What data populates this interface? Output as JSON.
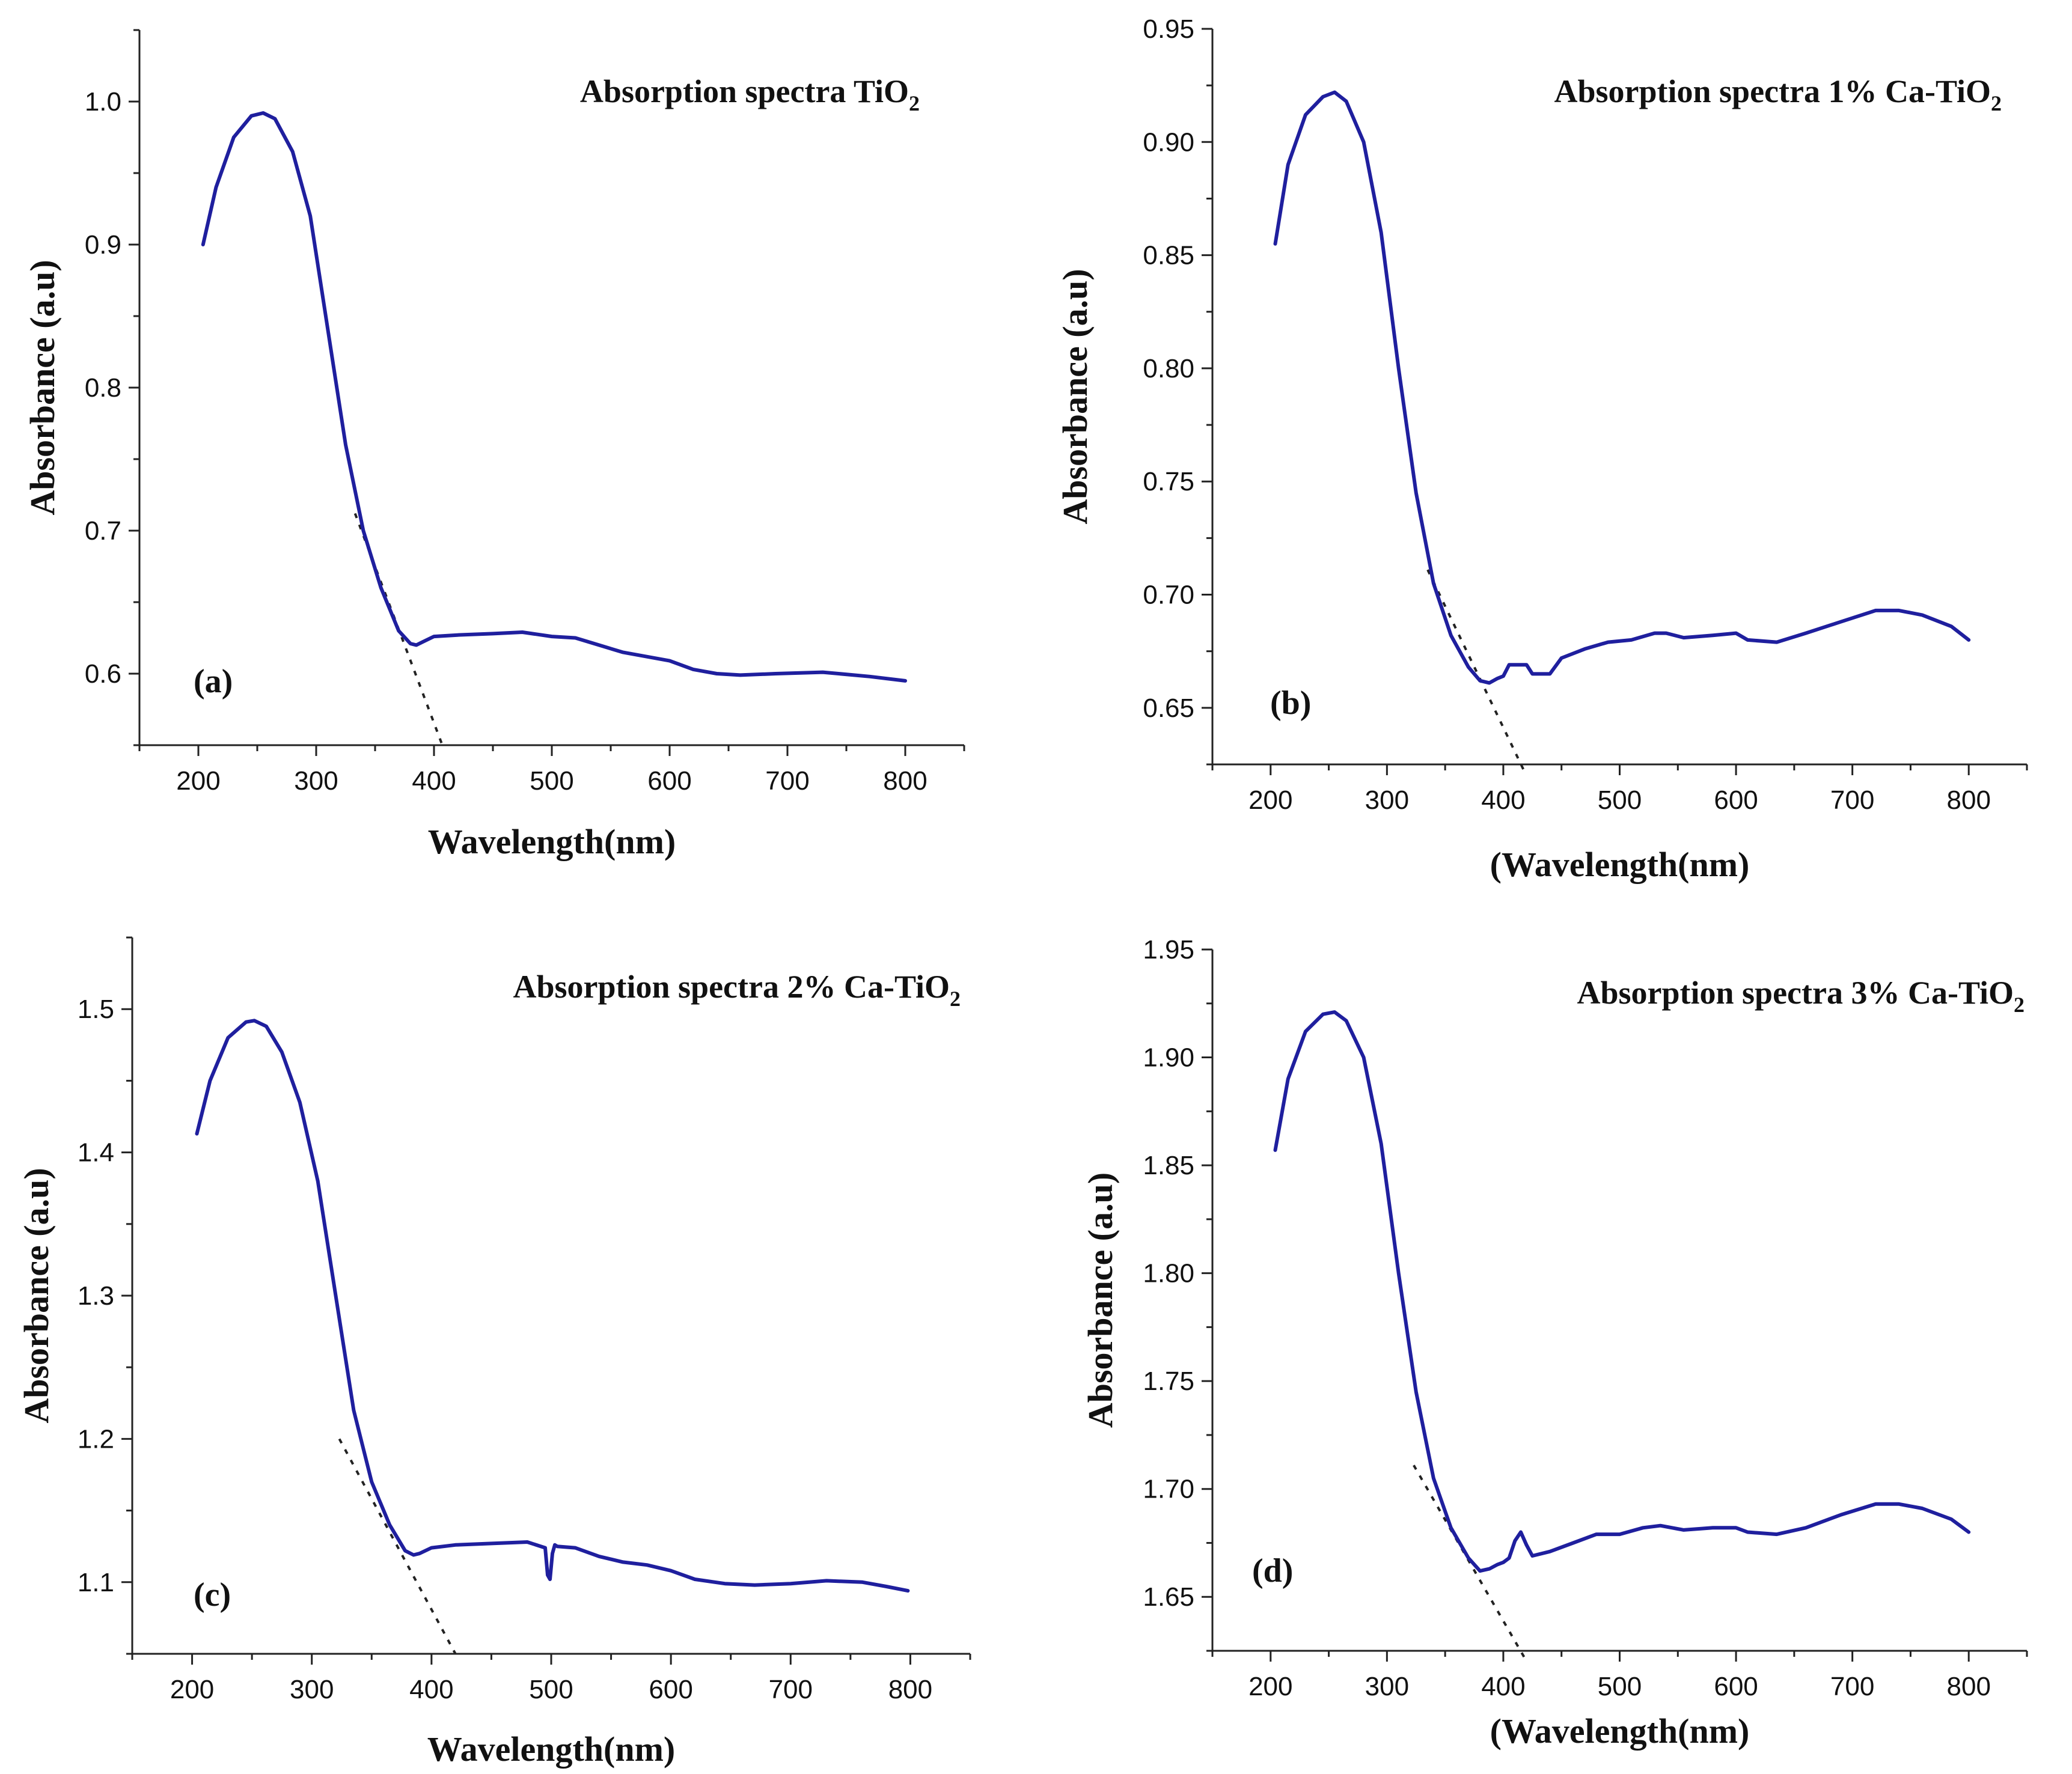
{
  "chart_data": [
    {
      "type": "line",
      "panel_label": "(a)",
      "title": "Absorption spectra TiO",
      "title_subscript": "2",
      "xlabel": "Wavelength(nm)",
      "ylabel": "Absorbance (a.u)",
      "xlim": [
        150,
        850
      ],
      "ylim": [
        0.55,
        1.05
      ],
      "xticks": [
        200,
        300,
        400,
        500,
        600,
        700,
        800
      ],
      "xtick_labels": [
        "200",
        "300",
        "400",
        "500",
        "600",
        "700",
        "800"
      ],
      "yticks": [
        0.6,
        0.7,
        0.8,
        0.9,
        1.0
      ],
      "ytick_labels": [
        "0.6",
        "0.7",
        "0.8",
        "0.9",
        "1.0"
      ],
      "series": [
        {
          "name": "TiO2",
          "x": [
            204,
            215,
            230,
            245,
            255,
            265,
            280,
            295,
            310,
            325,
            340,
            355,
            370,
            380,
            385,
            390,
            400,
            420,
            450,
            475,
            500,
            520,
            540,
            560,
            580,
            600,
            620,
            640,
            660,
            690,
            730,
            770,
            800
          ],
          "y": [
            0.9,
            0.94,
            0.975,
            0.99,
            0.992,
            0.988,
            0.965,
            0.92,
            0.84,
            0.76,
            0.7,
            0.66,
            0.63,
            0.621,
            0.62,
            0.622,
            0.626,
            0.627,
            0.628,
            0.629,
            0.626,
            0.625,
            0.62,
            0.615,
            0.612,
            0.609,
            0.603,
            0.6,
            0.599,
            0.6,
            0.601,
            0.598,
            0.595
          ]
        }
      ],
      "tangent": {
        "x": [
          333,
          408
        ],
        "y": [
          0.712,
          0.548
        ]
      }
    },
    {
      "type": "line",
      "panel_label": "(b)",
      "title": "Absorption spectra 1% Ca-TiO",
      "title_subscript": "2",
      "xlabel": "(Wavelength(nm)",
      "ylabel": "Absorbance (a.u)",
      "xlim": [
        150,
        850
      ],
      "ylim": [
        0.625,
        0.95
      ],
      "xticks": [
        200,
        300,
        400,
        500,
        600,
        700,
        800
      ],
      "xtick_labels": [
        "200",
        "300",
        "400",
        "500",
        "600",
        "700",
        "800"
      ],
      "yticks": [
        0.65,
        0.7,
        0.75,
        0.8,
        0.85,
        0.9,
        0.95
      ],
      "ytick_labels": [
        "0.65",
        "0.70",
        "0.75",
        "0.80",
        "0.85",
        "0.90",
        "0.95"
      ],
      "series": [
        {
          "name": "1% Ca-TiO2",
          "x": [
            204,
            215,
            230,
            245,
            255,
            265,
            280,
            295,
            310,
            325,
            340,
            355,
            370,
            380,
            388,
            395,
            400,
            405,
            420,
            425,
            440,
            450,
            470,
            490,
            510,
            530,
            540,
            555,
            580,
            600,
            610,
            635,
            660,
            690,
            720,
            740,
            760,
            785,
            800
          ],
          "y": [
            0.855,
            0.89,
            0.912,
            0.92,
            0.922,
            0.918,
            0.9,
            0.86,
            0.8,
            0.745,
            0.705,
            0.682,
            0.668,
            0.662,
            0.661,
            0.663,
            0.664,
            0.669,
            0.669,
            0.665,
            0.665,
            0.672,
            0.676,
            0.679,
            0.68,
            0.683,
            0.683,
            0.681,
            0.682,
            0.683,
            0.68,
            0.679,
            0.683,
            0.688,
            0.693,
            0.693,
            0.691,
            0.686,
            0.68
          ]
        }
      ],
      "tangent": {
        "x": [
          335,
          418
        ],
        "y": [
          0.711,
          0.622
        ]
      }
    },
    {
      "type": "line",
      "panel_label": "(c)",
      "title": "Absorption spectra 2% Ca-TiO",
      "title_subscript": "2",
      "xlabel": "Wavelength(nm)",
      "ylabel": "Absorbance (a.u)",
      "xlim": [
        150,
        850
      ],
      "ylim": [
        1.05,
        1.55
      ],
      "xticks": [
        200,
        300,
        400,
        500,
        600,
        700,
        800
      ],
      "xtick_labels": [
        "200",
        "300",
        "400",
        "500",
        "600",
        "700",
        "800"
      ],
      "yticks": [
        1.1,
        1.2,
        1.3,
        1.4,
        1.5
      ],
      "ytick_labels": [
        "1.1",
        "1.2",
        "1.3",
        "1.4",
        "1.5"
      ],
      "series": [
        {
          "name": "2% Ca-TiO2",
          "x": [
            204,
            215,
            230,
            245,
            252,
            262,
            275,
            290,
            305,
            320,
            335,
            350,
            365,
            378,
            385,
            390,
            400,
            420,
            450,
            480,
            495,
            497,
            499,
            501,
            503,
            505,
            520,
            540,
            560,
            580,
            600,
            620,
            645,
            670,
            700,
            730,
            760,
            780,
            798
          ],
          "y": [
            1.413,
            1.45,
            1.48,
            1.491,
            1.492,
            1.488,
            1.47,
            1.435,
            1.38,
            1.3,
            1.22,
            1.17,
            1.14,
            1.122,
            1.119,
            1.12,
            1.124,
            1.126,
            1.127,
            1.128,
            1.124,
            1.105,
            1.102,
            1.12,
            1.126,
            1.125,
            1.124,
            1.118,
            1.114,
            1.112,
            1.108,
            1.102,
            1.099,
            1.098,
            1.099,
            1.101,
            1.1,
            1.097,
            1.094
          ]
        }
      ],
      "tangent": {
        "x": [
          323,
          420
        ],
        "y": [
          1.2,
          1.05
        ]
      }
    },
    {
      "type": "line",
      "panel_label": "(d)",
      "title": "Absorption spectra 3% Ca-TiO",
      "title_subscript": "2",
      "xlabel": "(Wavelength(nm)",
      "ylabel": "Absorbance (a.u)",
      "xlim": [
        150,
        850
      ],
      "ylim": [
        1.625,
        1.95
      ],
      "xticks": [
        200,
        300,
        400,
        500,
        600,
        700,
        800
      ],
      "xtick_labels": [
        "200",
        "300",
        "400",
        "500",
        "600",
        "700",
        "800"
      ],
      "yticks": [
        1.65,
        1.7,
        1.75,
        1.8,
        1.85,
        1.9,
        1.95
      ],
      "ytick_labels": [
        "1.65",
        "1.70",
        "1.75",
        "1.80",
        "1.85",
        "1.90",
        "1.95"
      ],
      "series": [
        {
          "name": "3% Ca-TiO2",
          "x": [
            204,
            215,
            230,
            245,
            255,
            265,
            280,
            295,
            310,
            325,
            340,
            355,
            370,
            380,
            388,
            395,
            400,
            405,
            410,
            415,
            420,
            425,
            440,
            460,
            480,
            500,
            520,
            535,
            545,
            555,
            580,
            600,
            610,
            635,
            660,
            690,
            720,
            740,
            760,
            785,
            800
          ],
          "y": [
            1.857,
            1.89,
            1.912,
            1.92,
            1.921,
            1.917,
            1.9,
            1.86,
            1.8,
            1.745,
            1.705,
            1.682,
            1.668,
            1.662,
            1.663,
            1.665,
            1.666,
            1.668,
            1.676,
            1.68,
            1.674,
            1.669,
            1.671,
            1.675,
            1.679,
            1.679,
            1.682,
            1.683,
            1.682,
            1.681,
            1.682,
            1.682,
            1.68,
            1.679,
            1.682,
            1.688,
            1.693,
            1.693,
            1.691,
            1.686,
            1.68
          ]
        }
      ],
      "tangent": {
        "x": [
          323,
          418
        ],
        "y": [
          1.711,
          1.622
        ]
      }
    }
  ]
}
